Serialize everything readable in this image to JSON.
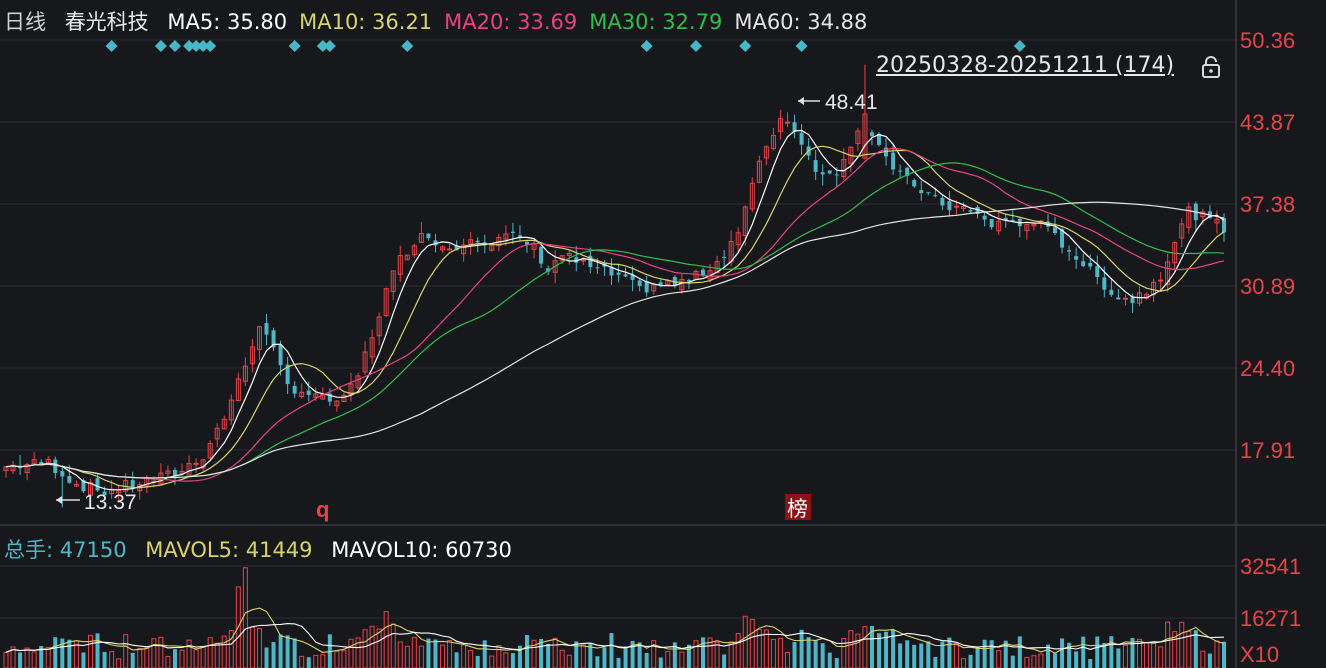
{
  "header": {
    "period": "日线",
    "stock_name": "春光科技",
    "ma": [
      {
        "label": "MA5: 35.80",
        "color": "#ffffff"
      },
      {
        "label": "MA10: 36.21",
        "color": "#d8d36a"
      },
      {
        "label": "MA20: 33.69",
        "color": "#e8437f"
      },
      {
        "label": "MA30: 32.79",
        "color": "#2fbf4a"
      },
      {
        "label": "MA60: 34.88",
        "color": "#e4e4e4"
      }
    ]
  },
  "range_label": "20250328-20251211 (174)",
  "price_axis": [
    "50.36",
    "43.87",
    "37.38",
    "30.89",
    "24.40",
    "17.91"
  ],
  "volume_header": {
    "total_label": "总手: 47150",
    "total_color": "#4fb6c8",
    "mavol5_label": "MAVOL5: 41449",
    "mavol5_color": "#d8d36a",
    "mavol10_label": "MAVOL10: 60730",
    "mavol10_color": "#ffffff"
  },
  "volume_axis": [
    "32541",
    "16271",
    "X10"
  ],
  "annotations": {
    "high": "48.41",
    "low": "13.37",
    "marker_q": "q",
    "marker_bang": "榜"
  },
  "chart_data": {
    "type": "candlestick",
    "date_range": "20250328-20251211",
    "bar_count": 174,
    "price_ylim": [
      13.37,
      50.36
    ],
    "price_ticks": [
      50.36,
      43.87,
      37.38,
      30.89,
      24.4,
      17.91
    ],
    "volume_ticks": [
      32541,
      16271
    ],
    "volume_unit": "X10",
    "highest_price": 48.41,
    "lowest_price": 13.37,
    "ma_values": {
      "MA5": 35.8,
      "MA10": 36.21,
      "MA20": 33.69,
      "MA30": 32.79,
      "MA60": 34.88
    },
    "volume_values": {
      "total": 47150,
      "MAVOL5": 41449,
      "MAVOL10": 60730
    },
    "close_path": [
      [
        0,
        16.6
      ],
      [
        6,
        16.9
      ],
      [
        10,
        15.2
      ],
      [
        14,
        14.6
      ],
      [
        18,
        15.2
      ],
      [
        22,
        15.7
      ],
      [
        25,
        16.3
      ],
      [
        28,
        17.5
      ],
      [
        31,
        20.5
      ],
      [
        34,
        24.6
      ],
      [
        36,
        28.0
      ],
      [
        38,
        25.6
      ],
      [
        40,
        23.0
      ],
      [
        42,
        22.6
      ],
      [
        45,
        21.9
      ],
      [
        48,
        21.8
      ],
      [
        50,
        23.8
      ],
      [
        52,
        27.0
      ],
      [
        54,
        30.5
      ],
      [
        56,
        33.0
      ],
      [
        58,
        34.5
      ],
      [
        60,
        35.0
      ],
      [
        62,
        34.0
      ],
      [
        64,
        33.9
      ],
      [
        66,
        35.0
      ],
      [
        69,
        34.2
      ],
      [
        71,
        34.8
      ],
      [
        73,
        34.6
      ],
      [
        75,
        33.9
      ],
      [
        77,
        32.2
      ],
      [
        79,
        33.4
      ],
      [
        81,
        32.8
      ],
      [
        84,
        32.2
      ],
      [
        87,
        31.6
      ],
      [
        90,
        30.6
      ],
      [
        93,
        31.1
      ],
      [
        95,
        31.0
      ],
      [
        98,
        31.6
      ],
      [
        101,
        32.8
      ],
      [
        104,
        35.2
      ],
      [
        106,
        38.8
      ],
      [
        108,
        42.0
      ],
      [
        110,
        44.2
      ],
      [
        112,
        43.4
      ],
      [
        114,
        41.2
      ],
      [
        116,
        39.5
      ],
      [
        118,
        40.0
      ],
      [
        120,
        42.3
      ],
      [
        122,
        43.6
      ],
      [
        124,
        42.3
      ],
      [
        126,
        40.0
      ],
      [
        128,
        39.2
      ],
      [
        130,
        38.5
      ],
      [
        132,
        37.6
      ],
      [
        134,
        37.2
      ],
      [
        136,
        37.0
      ],
      [
        138,
        36.4
      ],
      [
        140,
        35.7
      ],
      [
        142,
        36.2
      ],
      [
        144,
        35.6
      ],
      [
        146,
        36.1
      ],
      [
        148,
        35.2
      ],
      [
        150,
        34.3
      ],
      [
        152,
        33.2
      ],
      [
        154,
        32.0
      ],
      [
        156,
        31.0
      ],
      [
        158,
        30.0
      ],
      [
        160,
        29.8
      ],
      [
        162,
        30.6
      ],
      [
        164,
        31.8
      ],
      [
        166,
        34.5
      ],
      [
        168,
        36.8
      ],
      [
        170,
        36.3
      ],
      [
        172,
        35.8
      ],
      [
        173,
        35.3
      ]
    ]
  }
}
